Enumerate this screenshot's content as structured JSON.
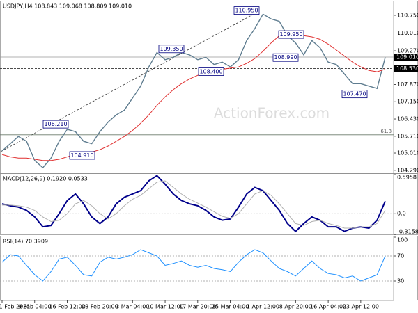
{
  "chart_data": [
    {
      "type": "line",
      "header": "USDJPY,H4 108.843 109.068 108.809 109.010",
      "watermark": "ActionForex.com",
      "categories": [
        "1 Feb 2021",
        null,
        null,
        null,
        "9 Feb 04:00",
        null,
        null,
        null,
        "16 Feb 12:00",
        null,
        null,
        null,
        "23 Feb 20:00",
        null,
        null,
        null,
        "3 Mar 04:00",
        null,
        null,
        null,
        "10 Mar 12:00",
        null,
        null,
        null,
        "17 Mar 20:00",
        null,
        null,
        null,
        "25 Mar 04:00",
        null,
        null,
        null,
        "1 Apr 12:00",
        null,
        null,
        null,
        "8 Apr 20:00",
        null,
        null,
        null,
        "16 Apr 04:00",
        null,
        null,
        null,
        "23 Apr 12:00",
        null,
        null,
        null
      ],
      "series": [
        {
          "color": "#5f7d90",
          "values": [
            105.1,
            105.4,
            105.7,
            105.5,
            104.7,
            104.4,
            104.8,
            105.5,
            106.0,
            105.9,
            105.5,
            105.4,
            105.9,
            106.3,
            106.6,
            106.8,
            107.3,
            107.8,
            108.6,
            109.2,
            108.9,
            109.0,
            109.2,
            109.1,
            108.9,
            109.0,
            108.7,
            108.8,
            108.6,
            108.9,
            109.7,
            110.2,
            110.8,
            110.6,
            110.5,
            109.9,
            109.6,
            109.1,
            109.7,
            109.4,
            108.8,
            108.7,
            108.3,
            107.9,
            107.9,
            107.8,
            107.7,
            109.0
          ]
        },
        {
          "color": "#e03030",
          "values": [
            104.95,
            104.85,
            104.8,
            104.8,
            104.75,
            104.7,
            104.7,
            104.75,
            104.85,
            104.95,
            105.0,
            105.05,
            105.15,
            105.3,
            105.5,
            105.7,
            105.95,
            106.25,
            106.6,
            107.0,
            107.35,
            107.65,
            107.9,
            108.1,
            108.25,
            108.35,
            108.45,
            108.5,
            108.55,
            108.6,
            108.75,
            108.95,
            109.25,
            109.6,
            109.9,
            109.95,
            110.0,
            109.9,
            109.85,
            109.75,
            109.55,
            109.3,
            109.05,
            108.8,
            108.6,
            108.45,
            108.4,
            108.5
          ]
        }
      ],
      "ylim": [
        104.17,
        111.3
      ],
      "yticks": [
        {
          "value": 110.75,
          "label": "110.750"
        },
        {
          "value": 110.01,
          "label": "110.010"
        },
        {
          "value": 109.27,
          "label": "109.270"
        },
        {
          "value": 107.87,
          "label": "107.870"
        },
        {
          "value": 107.15,
          "label": "107.150"
        },
        {
          "value": 106.43,
          "label": "106.430"
        },
        {
          "value": 105.71,
          "label": "105.710"
        },
        {
          "value": 105.01,
          "label": "105.010"
        },
        {
          "value": 104.29,
          "label": "104.290"
        }
      ],
      "levels": [
        {
          "value": 109.01,
          "label": "109.010"
        },
        {
          "value": 108.53,
          "label": "108.530"
        }
      ],
      "fib": {
        "value": 105.77,
        "label": "61.8"
      },
      "annotations": [
        {
          "value": 110.95,
          "label": "110.950"
        },
        {
          "value": 109.35,
          "label": "109.350"
        },
        {
          "value": 108.4,
          "label": "108.400"
        },
        {
          "value": 106.21,
          "label": "106.210"
        },
        {
          "value": 104.91,
          "label": "104.910"
        },
        {
          "value": 109.95,
          "label": "109.950"
        },
        {
          "value": 108.99,
          "label": "108.990"
        },
        {
          "value": 107.47,
          "label": "107.470"
        }
      ]
    },
    {
      "type": "line",
      "header": "MACD(12,26,9) 0.1920 0.0533",
      "series": [
        {
          "color": "#00008b",
          "values": [
            0.15,
            0.12,
            0.1,
            0.05,
            -0.05,
            -0.2,
            -0.18,
            0.0,
            0.2,
            0.3,
            0.15,
            -0.05,
            -0.15,
            -0.05,
            0.15,
            0.25,
            0.3,
            0.35,
            0.5,
            0.58,
            0.45,
            0.3,
            0.2,
            0.15,
            0.12,
            0.05,
            -0.05,
            -0.1,
            -0.08,
            0.1,
            0.3,
            0.4,
            0.35,
            0.2,
            0.05,
            -0.15,
            -0.27,
            -0.15,
            -0.05,
            -0.1,
            -0.2,
            -0.2,
            -0.27,
            -0.22,
            -0.2,
            -0.22,
            -0.1,
            0.19
          ]
        },
        {
          "color": "#b0b0b0",
          "values": [
            0.13,
            0.13,
            0.12,
            0.1,
            0.05,
            -0.05,
            -0.12,
            -0.1,
            0.0,
            0.15,
            0.2,
            0.12,
            0.0,
            -0.08,
            0.0,
            0.12,
            0.22,
            0.28,
            0.38,
            0.48,
            0.5,
            0.4,
            0.3,
            0.22,
            0.16,
            0.1,
            0.03,
            -0.04,
            -0.07,
            0.0,
            0.15,
            0.3,
            0.35,
            0.28,
            0.15,
            0.0,
            -0.15,
            -0.18,
            -0.12,
            -0.1,
            -0.15,
            -0.18,
            -0.22,
            -0.22,
            -0.2,
            -0.2,
            -0.15,
            0.05
          ]
        }
      ],
      "ylim": [
        -0.3158,
        0.5958
      ],
      "yticks": [
        0.5958,
        {
          "value": 0,
          "label": "0.0"
        },
        -0.3158
      ],
      "dotted": [
        0
      ]
    },
    {
      "type": "line",
      "header": "RSI(14) 70.3909",
      "series": [
        {
          "color": "#1e90ff",
          "values": [
            60,
            72,
            70,
            55,
            40,
            30,
            45,
            65,
            68,
            55,
            40,
            38,
            60,
            68,
            65,
            68,
            72,
            80,
            75,
            70,
            55,
            58,
            62,
            55,
            52,
            55,
            50,
            48,
            45,
            60,
            72,
            80,
            75,
            62,
            50,
            45,
            38,
            50,
            62,
            50,
            42,
            40,
            35,
            38,
            30,
            35,
            40,
            70
          ]
        }
      ],
      "ylim": [
        0,
        100
      ],
      "yticks": [
        100,
        70,
        30
      ],
      "dotted": [
        70,
        30
      ]
    }
  ]
}
